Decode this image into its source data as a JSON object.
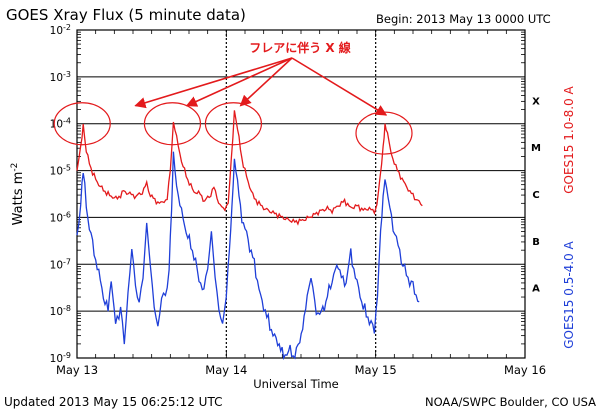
{
  "chart_data": {
    "type": "line",
    "title": "GOES Xray Flux (5 minute data)",
    "begin_label": "Begin:  2013 May 13 0000 UTC",
    "xlabel": "Universal Time",
    "ylabel": "Watts m",
    "ylabel_sup": "-2",
    "footer_left": "Updated 2013 May 15 06:25:12 UTC",
    "footer_right": "NOAA/SWPC Boulder, CO USA",
    "annotation": "フレアに伴う X 線",
    "xlim": [
      0,
      72
    ],
    "ylim_log10": [
      -9,
      -2
    ],
    "x_ticks": [
      {
        "hour": 0,
        "label": "May 13"
      },
      {
        "hour": 24,
        "label": "May 14"
      },
      {
        "hour": 48,
        "label": "May 15"
      },
      {
        "hour": 72,
        "label": "May 16"
      }
    ],
    "y_ticks": [
      {
        "exp": -2,
        "base": "10",
        "sup": "-2"
      },
      {
        "exp": -3,
        "base": "10",
        "sup": "-3"
      },
      {
        "exp": -4,
        "base": "10",
        "sup": "-4"
      },
      {
        "exp": -5,
        "base": "10",
        "sup": "-5"
      },
      {
        "exp": -6,
        "base": "10",
        "sup": "-6"
      },
      {
        "exp": -7,
        "base": "10",
        "sup": "-7"
      },
      {
        "exp": -8,
        "base": "10",
        "sup": "-8"
      },
      {
        "exp": -9,
        "base": "10",
        "sup": "-9"
      }
    ],
    "flare_classes": [
      {
        "label": "X",
        "exp": -3.5
      },
      {
        "label": "M",
        "exp": -4.5
      },
      {
        "label": "C",
        "exp": -5.5
      },
      {
        "label": "B",
        "exp": -6.5
      },
      {
        "label": "A",
        "exp": -7.5
      }
    ],
    "flare_peaks_hours": [
      1.0,
      15.5,
      25.3,
      49.5
    ],
    "series": [
      {
        "name": "GOES15 1.0-8.0 A",
        "color": "#e31a1c",
        "log10_values": [
          [
            0,
            -5.0
          ],
          [
            0.6,
            -4.5
          ],
          [
            1.0,
            -4.0
          ],
          [
            1.5,
            -4.6
          ],
          [
            2.5,
            -5.05
          ],
          [
            3.5,
            -5.3
          ],
          [
            4.5,
            -5.45
          ],
          [
            5.5,
            -5.55
          ],
          [
            6.5,
            -5.6
          ],
          [
            7.5,
            -5.45
          ],
          [
            8.5,
            -5.5
          ],
          [
            9.5,
            -5.55
          ],
          [
            10.5,
            -5.45
          ],
          [
            11.2,
            -5.3
          ],
          [
            11.8,
            -5.5
          ],
          [
            12.5,
            -5.65
          ],
          [
            13.5,
            -5.7
          ],
          [
            14.5,
            -5.6
          ],
          [
            15.0,
            -5.0
          ],
          [
            15.5,
            -3.95
          ],
          [
            16.0,
            -4.3
          ],
          [
            16.8,
            -4.8
          ],
          [
            17.8,
            -5.2
          ],
          [
            18.8,
            -5.45
          ],
          [
            19.8,
            -5.5
          ],
          [
            20.5,
            -5.65
          ],
          [
            21.5,
            -5.5
          ],
          [
            22.0,
            -5.35
          ],
          [
            22.5,
            -5.6
          ],
          [
            23.5,
            -5.85
          ],
          [
            24.3,
            -5.7
          ],
          [
            24.8,
            -4.8
          ],
          [
            25.3,
            -3.7
          ],
          [
            25.8,
            -4.1
          ],
          [
            26.5,
            -4.75
          ],
          [
            27.5,
            -5.25
          ],
          [
            28.5,
            -5.6
          ],
          [
            30.0,
            -5.8
          ],
          [
            31.5,
            -5.9
          ],
          [
            33.0,
            -6.0
          ],
          [
            35.0,
            -6.1
          ],
          [
            36.5,
            -6.05
          ],
          [
            38.0,
            -5.95
          ],
          [
            40.0,
            -5.8
          ],
          [
            41.0,
            -5.85
          ],
          [
            42.0,
            -5.75
          ],
          [
            43.0,
            -5.65
          ],
          [
            44.0,
            -5.8
          ],
          [
            45.0,
            -5.75
          ],
          [
            46.0,
            -5.85
          ],
          [
            47.0,
            -5.8
          ],
          [
            47.8,
            -5.9
          ],
          [
            48.2,
            -5.7
          ],
          [
            48.7,
            -5.2
          ],
          [
            49.2,
            -4.5
          ],
          [
            49.5,
            -4.0
          ],
          [
            49.9,
            -4.2
          ],
          [
            50.5,
            -4.65
          ],
          [
            51.5,
            -5.0
          ],
          [
            52.5,
            -5.25
          ],
          [
            53.5,
            -5.45
          ],
          [
            54.5,
            -5.6
          ],
          [
            55.5,
            -5.75
          ]
        ]
      },
      {
        "name": "GOES15 0.5-4.0 A",
        "color": "#1f3fd8",
        "log10_values": [
          [
            0,
            -6.5
          ],
          [
            0.6,
            -5.6
          ],
          [
            1.0,
            -5.0
          ],
          [
            1.5,
            -5.8
          ],
          [
            2.5,
            -6.6
          ],
          [
            3.5,
            -7.2
          ],
          [
            4.5,
            -7.8
          ],
          [
            5.0,
            -8.0
          ],
          [
            5.5,
            -7.3
          ],
          [
            6.2,
            -8.3
          ],
          [
            7.0,
            -7.9
          ],
          [
            7.6,
            -8.7
          ],
          [
            8.2,
            -7.6
          ],
          [
            8.8,
            -6.7
          ],
          [
            9.4,
            -7.4
          ],
          [
            10.0,
            -7.9
          ],
          [
            10.6,
            -7.2
          ],
          [
            11.2,
            -6.2
          ],
          [
            11.8,
            -7.0
          ],
          [
            12.4,
            -7.9
          ],
          [
            13.0,
            -8.4
          ],
          [
            13.6,
            -7.6
          ],
          [
            14.2,
            -7.8
          ],
          [
            14.8,
            -7.0
          ],
          [
            15.2,
            -5.8
          ],
          [
            15.5,
            -4.7
          ],
          [
            16.0,
            -5.3
          ],
          [
            16.8,
            -5.9
          ],
          [
            17.8,
            -6.4
          ],
          [
            18.8,
            -6.8
          ],
          [
            19.6,
            -7.3
          ],
          [
            20.4,
            -7.6
          ],
          [
            21.0,
            -7.0
          ],
          [
            21.6,
            -6.4
          ],
          [
            22.2,
            -7.2
          ],
          [
            22.8,
            -8.0
          ],
          [
            23.4,
            -8.3
          ],
          [
            24.0,
            -7.6
          ],
          [
            24.5,
            -6.8
          ],
          [
            24.9,
            -5.8
          ],
          [
            25.3,
            -4.7
          ],
          [
            25.8,
            -5.3
          ],
          [
            26.5,
            -6.0
          ],
          [
            27.5,
            -6.5
          ],
          [
            28.5,
            -7.0
          ],
          [
            29.5,
            -7.7
          ],
          [
            30.5,
            -8.1
          ],
          [
            31.5,
            -8.5
          ],
          [
            32.5,
            -8.7
          ],
          [
            33.2,
            -9.0
          ],
          [
            34.0,
            -8.8
          ],
          [
            35.0,
            -9.0
          ],
          [
            35.8,
            -8.6
          ],
          [
            36.5,
            -8.2
          ],
          [
            37.0,
            -7.7
          ],
          [
            37.6,
            -7.2
          ],
          [
            38.2,
            -7.9
          ],
          [
            39.0,
            -8.1
          ],
          [
            40.0,
            -7.8
          ],
          [
            41.0,
            -7.3
          ],
          [
            42.0,
            -7.0
          ],
          [
            43.0,
            -7.5
          ],
          [
            44.0,
            -6.8
          ],
          [
            45.0,
            -7.4
          ],
          [
            46.0,
            -7.9
          ],
          [
            47.0,
            -8.2
          ],
          [
            47.8,
            -8.4
          ],
          [
            48.3,
            -7.6
          ],
          [
            48.8,
            -6.4
          ],
          [
            49.2,
            -5.6
          ],
          [
            49.5,
            -5.1
          ],
          [
            50.0,
            -5.6
          ],
          [
            50.8,
            -6.2
          ],
          [
            51.6,
            -6.6
          ],
          [
            52.4,
            -7.0
          ],
          [
            53.2,
            -7.3
          ],
          [
            54.0,
            -7.5
          ],
          [
            55.0,
            -7.8
          ]
        ]
      }
    ]
  }
}
